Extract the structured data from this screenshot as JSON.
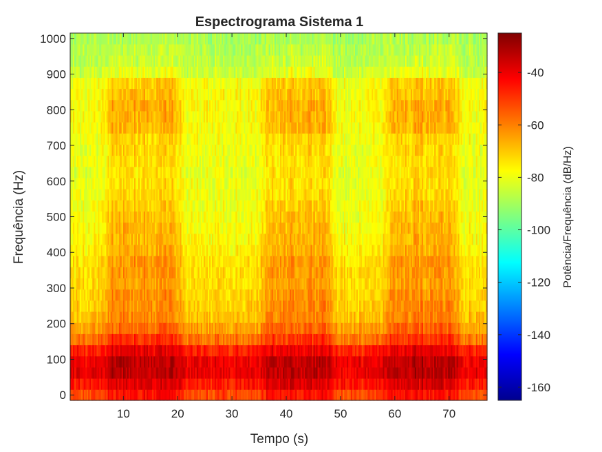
{
  "chart_data": {
    "type": "heatmap",
    "title": "Espectrograma Sistema 1",
    "xlabel": "Tempo (s)",
    "ylabel": "Frequência (Hz)",
    "colorbar_label": "Potência/Frequência (dB/Hz)",
    "colormap": "jet",
    "xlim": [
      0.2,
      77
    ],
    "ylim": [
      -15,
      1015
    ],
    "x_ticks": [
      10,
      20,
      30,
      40,
      50,
      60,
      70
    ],
    "x_tick_labels": [
      "10",
      "20",
      "30",
      "40",
      "50",
      "60",
      "70"
    ],
    "y_ticks": [
      0,
      100,
      200,
      300,
      400,
      500,
      600,
      700,
      800,
      900,
      1000
    ],
    "y_tick_labels": [
      "0",
      "100",
      "200",
      "300",
      "400",
      "500",
      "600",
      "700",
      "800",
      "900",
      "1000"
    ],
    "clim": [
      -165,
      -25
    ],
    "colorbar_ticks": [
      -40,
      -60,
      -80,
      -100,
      -120,
      -140,
      -160
    ],
    "colorbar_tick_labels": [
      "-40",
      "-60",
      "-80",
      "-100",
      "-120",
      "-140",
      "-160"
    ],
    "active_intervals_s": [
      [
        8,
        19
      ],
      [
        37,
        47
      ],
      [
        60,
        70
      ]
    ],
    "frequency_bands_hz": [
      0,
      31.25,
      62.5,
      93.75,
      125,
      156.25,
      187.5,
      218.75,
      250,
      281.25,
      312.5,
      343.75,
      375,
      406.25,
      437.5,
      468.75,
      500,
      531.25,
      562.5,
      593.75,
      625,
      656.25,
      687.5,
      718.75,
      750,
      781.25,
      812.5,
      843.75,
      875,
      906.25,
      937.5,
      968.75,
      1000
    ],
    "mean_power_db_hz_active": [
      -44,
      -38,
      -33,
      -33,
      -40,
      -49,
      -56,
      -60,
      -61,
      -62,
      -64,
      -63,
      -63,
      -66,
      -67,
      -67,
      -68,
      -70,
      -72,
      -73,
      -73,
      -73,
      -72,
      -71,
      -67,
      -66,
      -66,
      -68,
      -70,
      -80,
      -84,
      -86,
      -88
    ],
    "mean_power_db_hz_quiet": [
      -52,
      -45,
      -40,
      -40,
      -47,
      -58,
      -65,
      -69,
      -71,
      -72,
      -73,
      -73,
      -74,
      -76,
      -77,
      -78,
      -79,
      -80,
      -80,
      -80,
      -81,
      -80,
      -80,
      -79,
      -78,
      -78,
      -78,
      -78,
      -79,
      -85,
      -87,
      -88,
      -89
    ]
  }
}
